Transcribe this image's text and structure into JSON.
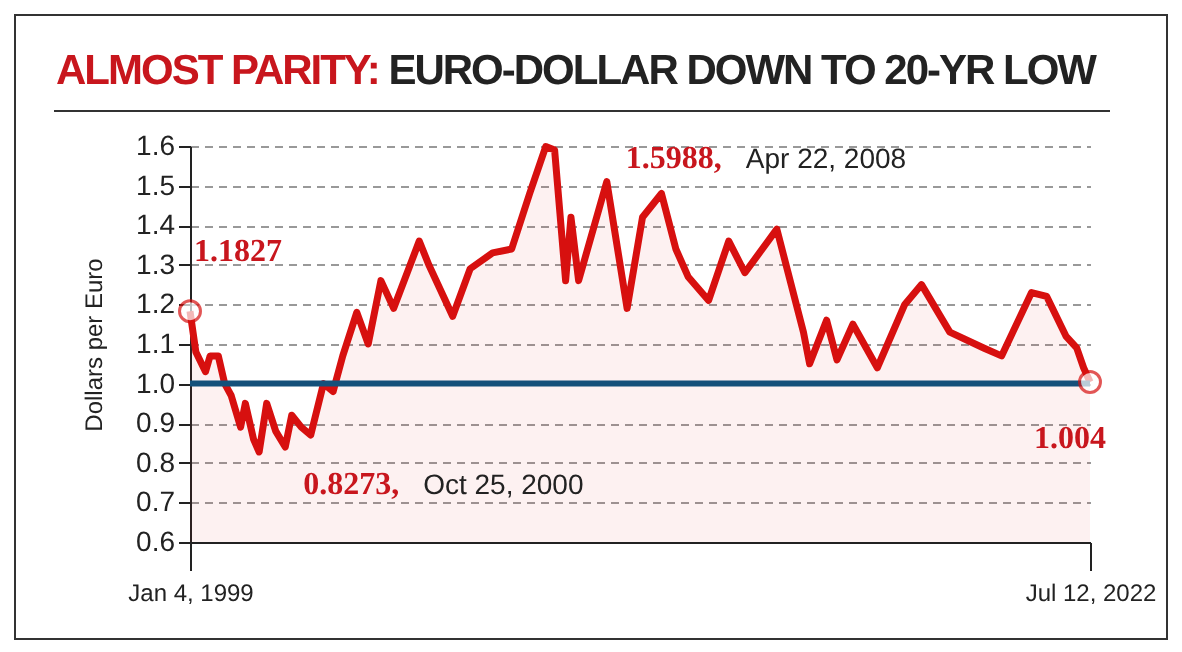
{
  "chart_data": {
    "type": "area",
    "title": "ALMOST PARITY: EURO-DOLLAR DOWN TO 20-YR LOW",
    "ylabel": "Dollars per Euro",
    "x": [
      "1999-01-04",
      "1999-03-01",
      "1999-06-01",
      "1999-07-15",
      "1999-10-01",
      "1999-12-01",
      "2000-02-01",
      "2000-05-01",
      "2000-06-15",
      "2000-09-01",
      "2000-10-25",
      "2001-01-05",
      "2001-04-01",
      "2001-07-01",
      "2001-09-01",
      "2001-12-01",
      "2002-03-01",
      "2002-07-01",
      "2002-10-01",
      "2003-01-01",
      "2003-05-15",
      "2003-09-01",
      "2003-12-31",
      "2004-05-01",
      "2004-12-31",
      "2005-04-01",
      "2005-11-15",
      "2006-05-01",
      "2006-12-01",
      "2007-06-01",
      "2007-11-20",
      "2008-04-22",
      "2008-07-15",
      "2008-10-28",
      "2008-12-18",
      "2009-03-01",
      "2009-11-25",
      "2010-06-07",
      "2010-11-01",
      "2011-05-01",
      "2011-09-15",
      "2012-01-10",
      "2012-07-24",
      "2013-02-01",
      "2013-07-05",
      "2014-05-06",
      "2015-01-15",
      "2015-03-15",
      "2015-08-24",
      "2015-12-01",
      "2016-05-01",
      "2016-12-20",
      "2017-09-08",
      "2018-02-15",
      "2018-11-12",
      "2019-10-01",
      "2020-03-20",
      "2020-12-31",
      "2021-05-25",
      "2021-11-24",
      "2022-03-07",
      "2022-05-12",
      "2022-07-12"
    ],
    "series": [
      {
        "color": "#d7100f",
        "values": [
          1.1827,
          1.08,
          1.03,
          1.07,
          1.07,
          1.0,
          0.97,
          0.89,
          0.95,
          0.86,
          0.8273,
          0.95,
          0.88,
          0.84,
          0.92,
          0.89,
          0.87,
          1.0,
          0.98,
          1.07,
          1.18,
          1.1,
          1.26,
          1.19,
          1.36,
          1.3,
          1.17,
          1.29,
          1.33,
          1.34,
          1.48,
          1.5988,
          1.59,
          1.26,
          1.42,
          1.26,
          1.51,
          1.19,
          1.42,
          1.48,
          1.34,
          1.27,
          1.21,
          1.36,
          1.28,
          1.39,
          1.13,
          1.05,
          1.16,
          1.06,
          1.15,
          1.04,
          1.2,
          1.25,
          1.13,
          1.09,
          1.07,
          1.23,
          1.22,
          1.12,
          1.09,
          1.04,
          1.004
        ]
      }
    ],
    "xlim": [
      "1999-01-04",
      "2022-07-12"
    ],
    "xticks": [
      {
        "value": "1999-01-04",
        "label": "Jan 4, 1999"
      },
      {
        "value": "2022-07-12",
        "label": "Jul 12, 2022"
      }
    ],
    "ylim": [
      0.6,
      1.6
    ],
    "yticks": [
      0.6,
      0.7,
      0.8,
      0.9,
      {
        "value": 1.0,
        "label": "1.0"
      },
      1.1,
      1.2,
      1.3,
      1.4,
      1.5,
      1.6
    ],
    "grid": "y",
    "ref_lines": [
      {
        "axis": "y",
        "value": 1.0,
        "color": "#14507a"
      }
    ],
    "annotations": [
      {
        "text": "1.1827",
        "x": "1999-01-04",
        "y": 1.1827
      },
      {
        "text": "0.8273, Oct 25, 2000",
        "x": "2000-10-25",
        "y": 0.8273
      },
      {
        "text": "1.5988, Apr 22, 2008",
        "x": "2008-04-22",
        "y": 1.5988
      },
      {
        "text": "1.004",
        "x": "2022-07-12",
        "y": 1.004
      }
    ]
  }
}
